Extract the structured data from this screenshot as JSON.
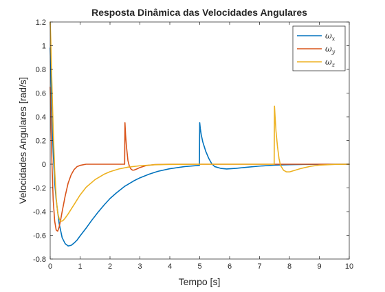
{
  "chart_data": {
    "type": "line",
    "title": "Resposta Dinâmica das Velocidades Angulares",
    "xlabel": "Tempo [s]",
    "ylabel": "Velocidades Angulares [rad/s]",
    "xlim": [
      0,
      10
    ],
    "ylim": [
      -0.8,
      1.2
    ],
    "xticks": [
      0,
      1,
      2,
      3,
      4,
      5,
      6,
      7,
      8,
      9,
      10
    ],
    "yticks": [
      -0.8,
      -0.6,
      -0.4,
      -0.2,
      0,
      0.2,
      0.4,
      0.6,
      0.8,
      1,
      1.2
    ],
    "grid": false,
    "legend_position": "top-right",
    "series": [
      {
        "name": "ωx",
        "legend_symbol": "ω",
        "legend_subscript": "x",
        "color": "#0072BD",
        "x": [
          0,
          0.05,
          0.1,
          0.15,
          0.2,
          0.3,
          0.4,
          0.5,
          0.6,
          0.7,
          0.8,
          0.9,
          1.0,
          1.2,
          1.4,
          1.6,
          1.8,
          2.0,
          2.2,
          2.5,
          2.8,
          3.0,
          3.3,
          3.6,
          4.0,
          4.5,
          4.99,
          5.0,
          5.02,
          5.05,
          5.1,
          5.2,
          5.3,
          5.4,
          5.5,
          5.7,
          5.9,
          6.2,
          6.6,
          7.0,
          7.5,
          8.0,
          8.5,
          9.0,
          10.0
        ],
        "y": [
          0.98,
          0.5,
          0.1,
          -0.15,
          -0.3,
          -0.5,
          -0.62,
          -0.67,
          -0.69,
          -0.685,
          -0.665,
          -0.64,
          -0.605,
          -0.54,
          -0.47,
          -0.405,
          -0.345,
          -0.29,
          -0.245,
          -0.185,
          -0.14,
          -0.115,
          -0.085,
          -0.06,
          -0.038,
          -0.02,
          -0.01,
          0.35,
          0.3,
          0.25,
          0.19,
          0.11,
          0.05,
          0.005,
          -0.02,
          -0.035,
          -0.04,
          -0.035,
          -0.025,
          -0.016,
          -0.008,
          -0.004,
          -0.002,
          -0.001,
          0
        ]
      },
      {
        "name": "ωy",
        "legend_symbol": "ω",
        "legend_subscript": "y",
        "color": "#D95319",
        "x": [
          0,
          0.03,
          0.06,
          0.1,
          0.15,
          0.2,
          0.25,
          0.3,
          0.35,
          0.4,
          0.5,
          0.6,
          0.7,
          0.8,
          0.9,
          1.0,
          1.2,
          1.4,
          1.7,
          2.0,
          2.49,
          2.5,
          2.52,
          2.55,
          2.6,
          2.65,
          2.7,
          2.75,
          2.8,
          2.9,
          3.0,
          3.2,
          3.5,
          4.0,
          5.0,
          10.0
        ],
        "y": [
          0.65,
          0.3,
          0.0,
          -0.3,
          -0.48,
          -0.555,
          -0.565,
          -0.53,
          -0.47,
          -0.4,
          -0.27,
          -0.16,
          -0.09,
          -0.045,
          -0.02,
          -0.01,
          0,
          0,
          0,
          0,
          0,
          0.35,
          0.25,
          0.15,
          0.03,
          -0.02,
          -0.04,
          -0.05,
          -0.05,
          -0.04,
          -0.028,
          -0.012,
          -0.003,
          0,
          0,
          0
        ]
      },
      {
        "name": "ωz",
        "legend_symbol": "ω",
        "legend_subscript": "z",
        "color": "#EDB120",
        "x": [
          0,
          0.02,
          0.05,
          0.1,
          0.15,
          0.2,
          0.25,
          0.3,
          0.35,
          0.4,
          0.45,
          0.5,
          0.6,
          0.7,
          0.8,
          1.0,
          1.2,
          1.5,
          1.8,
          2.0,
          2.3,
          2.6,
          3.0,
          3.5,
          4.0,
          5.0,
          6.0,
          7.0,
          7.49,
          7.5,
          7.52,
          7.55,
          7.6,
          7.65,
          7.7,
          7.8,
          7.9,
          8.0,
          8.2,
          8.4,
          8.7,
          9.0,
          9.5,
          10.0
        ],
        "y": [
          1.2,
          1.05,
          0.75,
          0.3,
          -0.05,
          -0.28,
          -0.41,
          -0.46,
          -0.48,
          -0.48,
          -0.47,
          -0.455,
          -0.42,
          -0.38,
          -0.34,
          -0.26,
          -0.195,
          -0.13,
          -0.085,
          -0.063,
          -0.04,
          -0.025,
          -0.013,
          -0.005,
          -0.002,
          0,
          0,
          0,
          0,
          0.49,
          0.4,
          0.28,
          0.15,
          0.05,
          -0.01,
          -0.05,
          -0.065,
          -0.065,
          -0.05,
          -0.035,
          -0.018,
          -0.008,
          -0.002,
          0
        ]
      }
    ]
  }
}
